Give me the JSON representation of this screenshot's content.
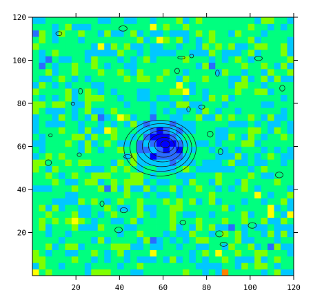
{
  "chart_data": {
    "type": "heatmap",
    "title": "",
    "xlabel": "",
    "ylabel": "",
    "xlim": [
      0,
      120
    ],
    "ylim": [
      0,
      120
    ],
    "x_ticks": [
      20,
      40,
      60,
      80,
      100,
      120
    ],
    "y_ticks": [
      20,
      40,
      60,
      80,
      100,
      120
    ],
    "x_tick_labels": [
      "20",
      "40",
      "60",
      "80",
      "100",
      "120"
    ],
    "y_tick_labels": [
      "20",
      "40",
      "60",
      "80",
      "100",
      "120"
    ],
    "grid_cells": [
      40,
      40
    ],
    "colormap": [
      "#0000ff",
      "#2a6cff",
      "#00c8ff",
      "#00ff7f",
      "#80ff00",
      "#ffff00",
      "#ff8000",
      "#ff0000"
    ],
    "background_level": "cyan-green noise",
    "peak": {
      "x": 61,
      "y": 61
    },
    "contour_levels": 7,
    "grid": false,
    "legend": "none"
  }
}
